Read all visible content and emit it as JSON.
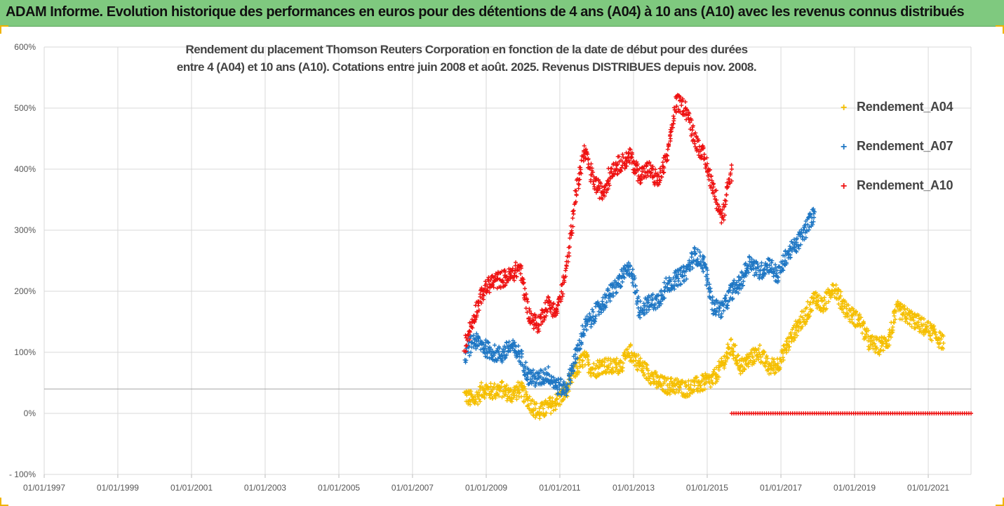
{
  "banner": {
    "title": "ADAM Informe. Evolution historique des performances en euros pour des détentions de 4 ans (A04) à 10 ans (A10) avec les revenus connus distribués",
    "color": "#7fc97f"
  },
  "chart_data": {
    "type": "scatter",
    "title_lines": [
      "Rendement du placement Thomson Reuters Corporation en fonction de la date de début pour des durées",
      "entre 4 (A04) et 10 ans (A10). Cotations entre juin 2008 et août. 2025. Revenus DISTRIBUES depuis nov. 2008."
    ],
    "xlabel": "",
    "ylabel": "",
    "xlim": [
      "1997-01-01",
      "2022-03-01"
    ],
    "ylim": [
      -100,
      600
    ],
    "y_ticks": [
      -100,
      0,
      100,
      200,
      300,
      400,
      500,
      600
    ],
    "y_tick_labels": [
      "- 100%",
      "0%",
      "100%",
      "200%",
      "300%",
      "400%",
      "500%",
      "600%"
    ],
    "x_tick_labels": [
      "01/01/1997",
      "01/01/1999",
      "01/01/2001",
      "01/01/2003",
      "01/01/2005",
      "01/01/2007",
      "01/01/2009",
      "01/01/2011",
      "01/01/2013",
      "01/01/2015",
      "01/01/2017",
      "01/01/2019",
      "01/01/2021"
    ],
    "grid": true,
    "marker": "+",
    "legend_position": "right",
    "reference_line": 40,
    "series": [
      {
        "name": "Rendement_A04",
        "color": "#f5bf00",
        "points": [
          [
            "2008-06-01",
            30
          ],
          [
            "2008-09-01",
            20
          ],
          [
            "2008-12-01",
            40
          ],
          [
            "2009-03-01",
            35
          ],
          [
            "2009-06-01",
            40
          ],
          [
            "2009-09-01",
            30
          ],
          [
            "2009-12-01",
            40
          ],
          [
            "2010-03-01",
            20
          ],
          [
            "2010-06-01",
            0
          ],
          [
            "2010-09-01",
            10
          ],
          [
            "2010-12-01",
            20
          ],
          [
            "2011-03-01",
            35
          ],
          [
            "2011-06-01",
            70
          ],
          [
            "2011-09-01",
            90
          ],
          [
            "2011-12-01",
            70
          ],
          [
            "2012-03-01",
            80
          ],
          [
            "2012-06-01",
            75
          ],
          [
            "2012-09-01",
            80
          ],
          [
            "2012-12-01",
            100
          ],
          [
            "2013-03-01",
            80
          ],
          [
            "2013-06-01",
            65
          ],
          [
            "2013-09-01",
            50
          ],
          [
            "2013-12-01",
            45
          ],
          [
            "2014-03-01",
            45
          ],
          [
            "2014-06-01",
            40
          ],
          [
            "2014-09-01",
            45
          ],
          [
            "2014-12-01",
            50
          ],
          [
            "2015-03-01",
            55
          ],
          [
            "2015-06-01",
            80
          ],
          [
            "2015-09-01",
            110
          ],
          [
            "2015-12-01",
            75
          ],
          [
            "2016-03-01",
            90
          ],
          [
            "2016-06-01",
            100
          ],
          [
            "2016-09-01",
            75
          ],
          [
            "2016-12-01",
            80
          ],
          [
            "2017-03-01",
            110
          ],
          [
            "2017-06-01",
            140
          ],
          [
            "2017-09-01",
            160
          ],
          [
            "2017-12-01",
            190
          ],
          [
            "2018-03-01",
            175
          ],
          [
            "2018-06-01",
            210
          ],
          [
            "2018-09-01",
            180
          ],
          [
            "2018-12-01",
            160
          ],
          [
            "2019-03-01",
            150
          ],
          [
            "2019-06-01",
            115
          ],
          [
            "2019-09-01",
            110
          ],
          [
            "2019-12-01",
            120
          ],
          [
            "2020-03-01",
            170
          ],
          [
            "2020-06-01",
            160
          ],
          [
            "2020-09-01",
            150
          ],
          [
            "2020-12-01",
            140
          ],
          [
            "2021-03-01",
            130
          ],
          [
            "2021-06-01",
            115
          ]
        ]
      },
      {
        "name": "Rendement_A07",
        "color": "#1f77c4",
        "points": [
          [
            "2008-06-01",
            95
          ],
          [
            "2008-09-01",
            120
          ],
          [
            "2008-12-01",
            110
          ],
          [
            "2009-03-01",
            100
          ],
          [
            "2009-06-01",
            95
          ],
          [
            "2009-09-01",
            110
          ],
          [
            "2009-12-01",
            95
          ],
          [
            "2010-03-01",
            60
          ],
          [
            "2010-06-01",
            55
          ],
          [
            "2010-09-01",
            65
          ],
          [
            "2010-12-01",
            45
          ],
          [
            "2011-03-01",
            40
          ],
          [
            "2011-06-01",
            90
          ],
          [
            "2011-09-01",
            140
          ],
          [
            "2011-12-01",
            160
          ],
          [
            "2012-03-01",
            180
          ],
          [
            "2012-06-01",
            200
          ],
          [
            "2012-09-01",
            220
          ],
          [
            "2012-12-01",
            240
          ],
          [
            "2013-03-01",
            170
          ],
          [
            "2013-06-01",
            180
          ],
          [
            "2013-09-01",
            185
          ],
          [
            "2013-12-01",
            210
          ],
          [
            "2014-03-01",
            220
          ],
          [
            "2014-06-01",
            230
          ],
          [
            "2014-09-01",
            260
          ],
          [
            "2014-12-01",
            245
          ],
          [
            "2015-03-01",
            175
          ],
          [
            "2015-06-01",
            170
          ],
          [
            "2015-09-01",
            200
          ],
          [
            "2015-12-01",
            215
          ],
          [
            "2016-03-01",
            250
          ],
          [
            "2016-06-01",
            230
          ],
          [
            "2016-09-01",
            245
          ],
          [
            "2016-12-01",
            225
          ],
          [
            "2017-03-01",
            260
          ],
          [
            "2017-06-01",
            275
          ],
          [
            "2017-09-01",
            300
          ],
          [
            "2017-12-01",
            330
          ]
        ]
      },
      {
        "name": "Rendement_A10",
        "color": "#ee1111",
        "points": [
          [
            "2008-06-01",
            110
          ],
          [
            "2008-09-01",
            160
          ],
          [
            "2008-12-01",
            200
          ],
          [
            "2009-03-01",
            215
          ],
          [
            "2009-06-01",
            220
          ],
          [
            "2009-09-01",
            225
          ],
          [
            "2009-12-01",
            240
          ],
          [
            "2010-03-01",
            160
          ],
          [
            "2010-06-01",
            145
          ],
          [
            "2010-09-01",
            180
          ],
          [
            "2010-12-01",
            165
          ],
          [
            "2011-03-01",
            230
          ],
          [
            "2011-06-01",
            350
          ],
          [
            "2011-09-01",
            430
          ],
          [
            "2011-12-01",
            380
          ],
          [
            "2012-03-01",
            360
          ],
          [
            "2012-06-01",
            400
          ],
          [
            "2012-09-01",
            410
          ],
          [
            "2012-12-01",
            420
          ],
          [
            "2013-03-01",
            390
          ],
          [
            "2013-06-01",
            400
          ],
          [
            "2013-09-01",
            380
          ],
          [
            "2013-12-01",
            420
          ],
          [
            "2014-03-01",
            510
          ],
          [
            "2014-06-01",
            500
          ],
          [
            "2014-09-01",
            450
          ],
          [
            "2014-12-01",
            420
          ],
          [
            "2015-03-01",
            370
          ],
          [
            "2015-06-01",
            320
          ],
          [
            "2015-09-01",
            400
          ]
        ],
        "flat_segment": {
          "from": "2015-09-01",
          "to": "2022-03-01",
          "value": 0
        }
      }
    ]
  }
}
